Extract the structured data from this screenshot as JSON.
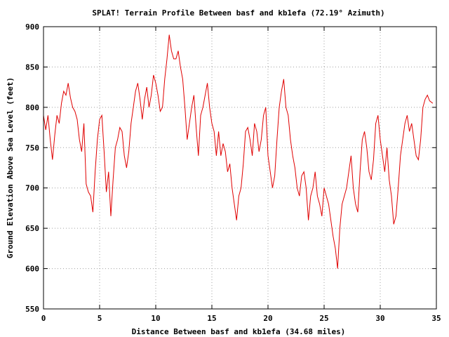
{
  "chart_data": {
    "type": "line",
    "title": "SPLAT! Terrain Profile Between basf and kb1efa (72.19° Azimuth)",
    "xlabel": "Distance Between basf and kb1efa (34.68 miles)",
    "ylabel": "Ground Elevation Above Sea Level (feet)",
    "xlim": [
      0,
      35
    ],
    "ylim": [
      550,
      900
    ],
    "x_ticks": [
      0,
      5,
      10,
      15,
      20,
      25,
      30,
      35
    ],
    "y_ticks": [
      550,
      600,
      650,
      700,
      750,
      800,
      850,
      900
    ],
    "x_tick_labels": [
      "0",
      "5",
      "10",
      "15",
      "20",
      "25",
      "30",
      "35"
    ],
    "y_tick_labels": [
      "550",
      "600",
      "650",
      "700",
      "750",
      "800",
      "850",
      "900"
    ],
    "grid": true,
    "line_color": "#e00000",
    "series": [
      {
        "name": "",
        "x": [
          0,
          0.2,
          0.4,
          0.6,
          0.8,
          1.0,
          1.2,
          1.4,
          1.6,
          1.8,
          2.0,
          2.2,
          2.4,
          2.6,
          2.8,
          3.0,
          3.2,
          3.4,
          3.6,
          3.8,
          4.0,
          4.2,
          4.4,
          4.6,
          4.8,
          5.0,
          5.2,
          5.4,
          5.6,
          5.8,
          6.0,
          6.2,
          6.4,
          6.6,
          6.8,
          7.0,
          7.2,
          7.4,
          7.6,
          7.8,
          8.0,
          8.2,
          8.4,
          8.6,
          8.8,
          9.0,
          9.2,
          9.4,
          9.6,
          9.8,
          10.0,
          10.2,
          10.4,
          10.6,
          10.8,
          11.0,
          11.2,
          11.4,
          11.6,
          11.8,
          12.0,
          12.2,
          12.4,
          12.6,
          12.8,
          13.0,
          13.2,
          13.4,
          13.6,
          13.8,
          14.0,
          14.2,
          14.4,
          14.6,
          14.8,
          15.0,
          15.2,
          15.4,
          15.6,
          15.8,
          16.0,
          16.2,
          16.4,
          16.6,
          16.8,
          17.0,
          17.2,
          17.4,
          17.6,
          17.8,
          18.0,
          18.2,
          18.4,
          18.6,
          18.8,
          19.0,
          19.2,
          19.4,
          19.6,
          19.8,
          20.0,
          20.2,
          20.4,
          20.6,
          20.8,
          21.0,
          21.2,
          21.4,
          21.6,
          21.8,
          22.0,
          22.2,
          22.4,
          22.6,
          22.8,
          23.0,
          23.2,
          23.4,
          23.6,
          23.8,
          24.0,
          24.2,
          24.4,
          24.6,
          24.8,
          25.0,
          25.2,
          25.4,
          25.6,
          25.8,
          26.0,
          26.2,
          26.4,
          26.6,
          26.8,
          27.0,
          27.2,
          27.4,
          27.6,
          27.8,
          28.0,
          28.2,
          28.4,
          28.6,
          28.8,
          29.0,
          29.2,
          29.4,
          29.6,
          29.8,
          30.0,
          30.2,
          30.4,
          30.6,
          30.8,
          31.0,
          31.2,
          31.4,
          31.6,
          31.8,
          32.0,
          32.2,
          32.4,
          32.6,
          32.8,
          33.0,
          33.2,
          33.4,
          33.6,
          33.8,
          34.0,
          34.2,
          34.4,
          34.68
        ],
        "y": [
          790,
          772,
          790,
          760,
          735,
          765,
          790,
          780,
          805,
          820,
          815,
          830,
          812,
          800,
          795,
          785,
          760,
          745,
          780,
          705,
          695,
          690,
          670,
          720,
          760,
          785,
          790,
          745,
          695,
          720,
          665,
          710,
          750,
          760,
          775,
          770,
          740,
          725,
          745,
          780,
          800,
          820,
          830,
          810,
          785,
          810,
          825,
          800,
          815,
          840,
          830,
          815,
          795,
          800,
          835,
          860,
          890,
          870,
          860,
          860,
          870,
          850,
          835,
          800,
          760,
          780,
          800,
          815,
          775,
          740,
          790,
          800,
          815,
          830,
          800,
          780,
          770,
          740,
          770,
          740,
          755,
          745,
          720,
          730,
          700,
          680,
          660,
          690,
          700,
          730,
          770,
          775,
          760,
          740,
          780,
          770,
          745,
          760,
          790,
          800,
          740,
          720,
          700,
          715,
          760,
          800,
          820,
          835,
          800,
          790,
          760,
          740,
          725,
          700,
          690,
          715,
          720,
          700,
          660,
          690,
          700,
          720,
          690,
          680,
          665,
          700,
          690,
          680,
          660,
          640,
          625,
          600,
          650,
          680,
          690,
          700,
          720,
          740,
          700,
          680,
          670,
          720,
          760,
          770,
          750,
          720,
          710,
          735,
          780,
          790,
          760,
          740,
          720,
          750,
          710,
          690,
          655,
          665,
          700,
          740,
          760,
          780,
          790,
          770,
          780,
          760,
          740,
          735,
          760,
          800,
          810,
          815,
          808,
          805
        ]
      }
    ]
  }
}
